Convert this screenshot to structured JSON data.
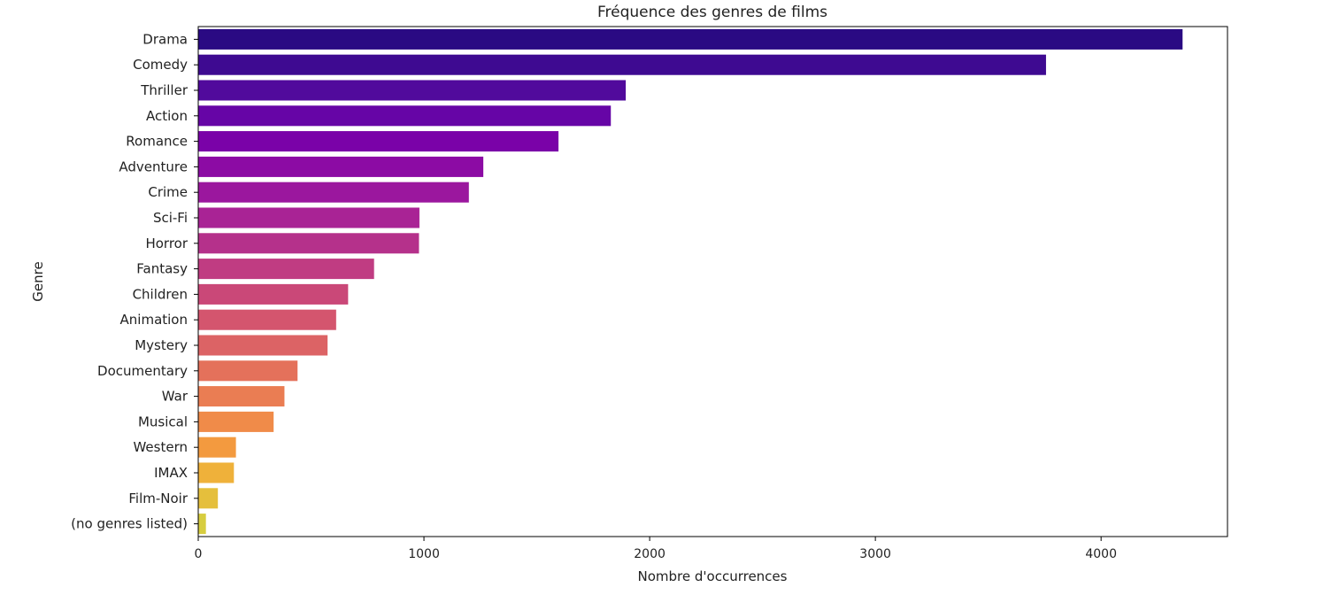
{
  "chart_data": {
    "type": "bar",
    "orientation": "horizontal",
    "title": "Fréquence des genres de films",
    "xlabel": "Nombre d'occurrences",
    "ylabel": "Genre",
    "xlim": [
      0,
      4560
    ],
    "xticks": [
      0,
      1000,
      2000,
      3000,
      4000
    ],
    "grid": false,
    "categories": [
      "Drama",
      "Comedy",
      "Thriller",
      "Action",
      "Romance",
      "Adventure",
      "Crime",
      "Sci-Fi",
      "Horror",
      "Fantasy",
      "Children",
      "Animation",
      "Mystery",
      "Documentary",
      "War",
      "Musical",
      "Western",
      "IMAX",
      "Film-Noir",
      "(no genres listed)"
    ],
    "values": [
      4361,
      3756,
      1894,
      1828,
      1596,
      1263,
      1199,
      980,
      978,
      779,
      664,
      611,
      573,
      440,
      382,
      334,
      167,
      158,
      87,
      34
    ],
    "colors": [
      "#2a0a83",
      "#3e0a91",
      "#510a9c",
      "#6605a6",
      "#7a02a8",
      "#8c0ba4",
      "#9b179e",
      "#a92395",
      "#b5318b",
      "#c03c82",
      "#ca4878",
      "#d4556e",
      "#dc6365",
      "#e4715b",
      "#ea7d53",
      "#f08b49",
      "#f39a3f",
      "#efb13a",
      "#e5bf3c",
      "#d7cd3f"
    ]
  }
}
